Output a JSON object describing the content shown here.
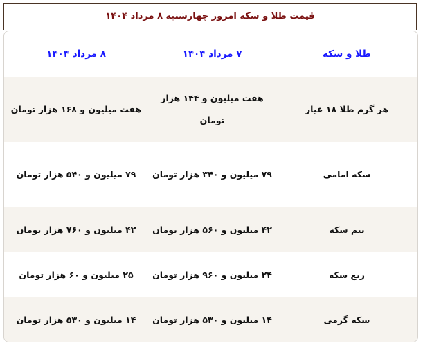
{
  "title": "قیمت طلا و سکه امروز چهارشنبه ۸ مرداد ۱۴۰۴",
  "colors": {
    "title": "#7a1010",
    "header": "#1a1aff",
    "alt_row": "#f6f3ee"
  },
  "table": {
    "headers": [
      "طلا و سکه",
      "۷ مرداد ۱۴۰۴",
      "۸ مرداد ۱۴۰۴"
    ],
    "rows": [
      [
        "هر گرم طلا ۱۸ عیار",
        "هفت میلیون و ۱۴۴ هزار تومان",
        "هفت میلیون و ۱۶۸ هزار تومان"
      ],
      [
        "سکه امامی",
        "۷۹ میلیون و ۳۴۰ هزار تومان",
        "۷۹ میلیون و ۵۴۰ هزار تومان"
      ],
      [
        "نیم سکه",
        "۴۲ میلیون و ۵۶۰ هزار تومان",
        "۴۲ میلیون و ۷۶۰ هزار تومان"
      ],
      [
        "ربع سکه",
        "۲۴ میلیون و ۹۶۰ هزار تومان",
        "۲۵ میلیون و ۶۰ هزار تومان"
      ],
      [
        "سکه گرمی",
        "۱۴ میلیون و ۵۳۰ هزار تومان",
        "۱۴ میلیون و ۵۳۰ هزار تومان"
      ]
    ]
  }
}
